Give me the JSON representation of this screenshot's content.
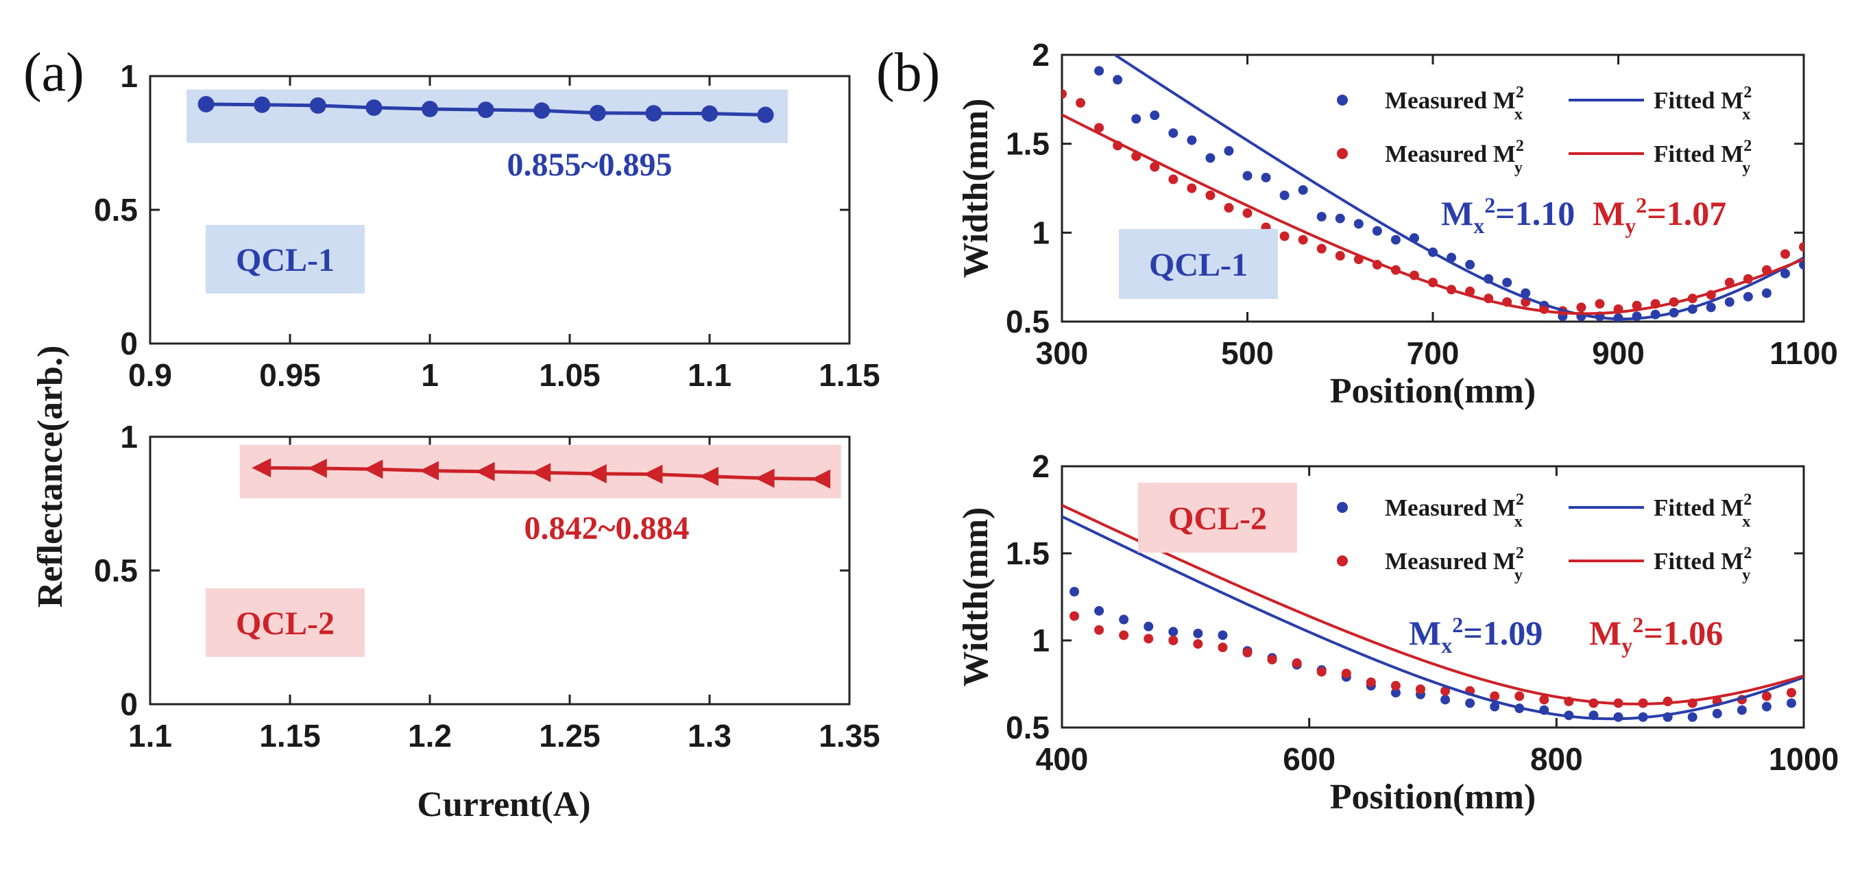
{
  "figure": {
    "panel_a_label": "(a)",
    "panel_b_label": "(b)"
  },
  "colors": {
    "blue": "#2a3eaa",
    "red": "#cc2228",
    "blue_box": "#cfddf2",
    "red_box": "#f9d4d5"
  },
  "panel_a": {
    "shared_ylabel": "Reflectance(arb.)",
    "shared_xlabel": "Current(A)"
  },
  "chart_data": [
    {
      "id": "a1",
      "type": "line",
      "marker": "circle",
      "xlim": [
        0.9,
        1.15
      ],
      "ylim": [
        0,
        1
      ],
      "xticks": [
        "0.9",
        "0.95",
        "1",
        "1.05",
        "1.1",
        "1.15"
      ],
      "yticks": [
        "0",
        "0.5",
        "1"
      ],
      "x": [
        0.92,
        0.94,
        0.96,
        0.98,
        1.0,
        1.02,
        1.04,
        1.06,
        1.08,
        1.1,
        1.12
      ],
      "y": [
        0.895,
        0.893,
        0.89,
        0.882,
        0.877,
        0.874,
        0.871,
        0.862,
        0.861,
        0.86,
        0.855
      ],
      "band": [
        0.75,
        0.95
      ],
      "band_x": [
        0.913,
        1.128
      ],
      "range_label": "0.855~0.895",
      "box_label": "QCL-1"
    },
    {
      "id": "a2",
      "type": "line",
      "marker": "left-triangle",
      "xlim": [
        1.1,
        1.35
      ],
      "ylim": [
        0,
        1
      ],
      "xticks": [
        "1.1",
        "1.15",
        "1.2",
        "1.25",
        "1.3",
        "1.35"
      ],
      "yticks": [
        "0",
        "0.5",
        "1"
      ],
      "x": [
        1.14,
        1.16,
        1.18,
        1.2,
        1.22,
        1.24,
        1.26,
        1.28,
        1.3,
        1.32,
        1.34
      ],
      "y": [
        0.884,
        0.882,
        0.879,
        0.873,
        0.87,
        0.866,
        0.862,
        0.86,
        0.852,
        0.845,
        0.842
      ],
      "band": [
        0.77,
        0.97
      ],
      "band_x": [
        1.132,
        1.347
      ],
      "range_label": "0.842~0.884",
      "box_label": "QCL-2"
    },
    {
      "id": "b1",
      "type": "scatter+line",
      "xlim": [
        300,
        1100
      ],
      "ylim": [
        0.5,
        2
      ],
      "xticks": [
        "300",
        "500",
        "700",
        "900",
        "1100"
      ],
      "yticks": [
        "0.5",
        "1",
        "1.5",
        "2"
      ],
      "xlabel": "Position(mm)",
      "ylabel": "Width(mm)",
      "box_label": "QCL-1",
      "series": [
        {
          "name": "Measured M_x^2",
          "kind": "measured",
          "color": "blue",
          "x": [
            340,
            360,
            380,
            400,
            420,
            440,
            460,
            480,
            500,
            520,
            540,
            560,
            580,
            600,
            620,
            640,
            660,
            680,
            700,
            720,
            740,
            760,
            780,
            800,
            820,
            840,
            860,
            880,
            900,
            920,
            940,
            960,
            980,
            1000,
            1020,
            1040,
            1060,
            1080,
            1100
          ],
          "y": [
            1.91,
            1.86,
            1.64,
            1.66,
            1.56,
            1.52,
            1.42,
            1.46,
            1.32,
            1.31,
            1.21,
            1.24,
            1.09,
            1.08,
            1.05,
            1.01,
            0.96,
            0.97,
            0.89,
            0.86,
            0.82,
            0.74,
            0.72,
            0.66,
            0.59,
            0.53,
            0.53,
            0.53,
            0.52,
            0.53,
            0.54,
            0.55,
            0.57,
            0.58,
            0.61,
            0.64,
            0.66,
            0.77,
            0.82
          ]
        },
        {
          "name": "Measured M_y^2",
          "kind": "measured",
          "color": "red",
          "x": [
            300,
            320,
            340,
            360,
            380,
            400,
            420,
            440,
            460,
            480,
            500,
            520,
            540,
            560,
            580,
            600,
            620,
            640,
            660,
            680,
            700,
            720,
            740,
            760,
            780,
            800,
            820,
            840,
            860,
            880,
            900,
            920,
            940,
            960,
            980,
            1000,
            1020,
            1040,
            1060,
            1080,
            1100
          ],
          "y": [
            1.78,
            1.73,
            1.59,
            1.49,
            1.43,
            1.37,
            1.3,
            1.25,
            1.21,
            1.14,
            1.11,
            1.03,
            0.98,
            0.96,
            0.91,
            0.87,
            0.85,
            0.82,
            0.79,
            0.76,
            0.72,
            0.68,
            0.67,
            0.63,
            0.61,
            0.61,
            0.57,
            0.56,
            0.58,
            0.6,
            0.57,
            0.59,
            0.6,
            0.61,
            0.63,
            0.65,
            0.72,
            0.74,
            0.79,
            0.88,
            0.92
          ]
        },
        {
          "name": "Fitted M_x^2",
          "kind": "fit",
          "color": "blue",
          "params": {
            "w0": 0.515,
            "z0": 905,
            "zr": 146
          }
        },
        {
          "name": "Fitted M_y^2",
          "kind": "fit",
          "color": "red",
          "params": {
            "w0": 0.545,
            "z0": 865,
            "zr": 196
          }
        }
      ],
      "legend": {
        "measured_x": "Measured M",
        "fitted_x": "Fitted M",
        "measured_y": "Measured M",
        "fitted_y": "Fitted M",
        "sup": "2",
        "sub_x": "x",
        "sub_y": "y"
      },
      "annotations": {
        "mx_value": "=1.10",
        "my_value": "=1.07",
        "m": "M",
        "sub_x": "x",
        "sub_y": "y",
        "sup": "2"
      }
    },
    {
      "id": "b2",
      "type": "scatter+line",
      "xlim": [
        400,
        1000
      ],
      "ylim": [
        0.5,
        2
      ],
      "xticks": [
        "400",
        "600",
        "800",
        "1000"
      ],
      "yticks": [
        "0.5",
        "1",
        "1.5",
        "2"
      ],
      "xlabel": "Position(mm)",
      "ylabel": "Width(mm)",
      "box_label": "QCL-2",
      "series": [
        {
          "name": "Measured M_x^2",
          "kind": "measured",
          "color": "blue",
          "x": [
            410,
            430,
            450,
            470,
            490,
            510,
            530,
            550,
            570,
            590,
            610,
            630,
            650,
            670,
            690,
            710,
            730,
            750,
            770,
            790,
            810,
            830,
            850,
            870,
            890,
            910,
            930,
            950,
            970,
            990
          ],
          "y": [
            1.28,
            1.17,
            1.12,
            1.08,
            1.05,
            1.04,
            1.03,
            0.94,
            0.9,
            0.86,
            0.83,
            0.79,
            0.74,
            0.7,
            0.69,
            0.66,
            0.64,
            0.62,
            0.61,
            0.6,
            0.57,
            0.57,
            0.56,
            0.56,
            0.56,
            0.56,
            0.58,
            0.6,
            0.62,
            0.64
          ]
        },
        {
          "name": "Measured M_y^2",
          "kind": "measured",
          "color": "red",
          "x": [
            410,
            430,
            450,
            470,
            490,
            510,
            530,
            550,
            570,
            590,
            610,
            630,
            650,
            670,
            690,
            710,
            730,
            750,
            770,
            790,
            810,
            830,
            850,
            870,
            890,
            910,
            930,
            950,
            970,
            990
          ],
          "y": [
            1.14,
            1.06,
            1.03,
            1.01,
            1.0,
            0.98,
            0.96,
            0.93,
            0.89,
            0.87,
            0.82,
            0.81,
            0.76,
            0.74,
            0.72,
            0.71,
            0.71,
            0.68,
            0.68,
            0.66,
            0.65,
            0.64,
            0.64,
            0.64,
            0.65,
            0.64,
            0.65,
            0.66,
            0.68,
            0.7
          ]
        },
        {
          "name": "Fitted M_x^2",
          "kind": "fit",
          "color": "blue",
          "params": {
            "w0": 0.55,
            "z0": 845,
            "zr": 151
          }
        },
        {
          "name": "Fitted M_y^2",
          "kind": "fit",
          "color": "red",
          "params": {
            "w0": 0.635,
            "z0": 865,
            "zr": 178
          }
        }
      ],
      "legend": {
        "measured_x": "Measured M",
        "fitted_x": "Fitted M",
        "measured_y": "Measured M",
        "fitted_y": "Fitted M",
        "sup": "2",
        "sub_x": "x",
        "sub_y": "y"
      },
      "annotations": {
        "mx_value": "=1.09",
        "my_value": "=1.06",
        "m": "M",
        "sub_x": "x",
        "sub_y": "y",
        "sup": "2"
      }
    }
  ]
}
